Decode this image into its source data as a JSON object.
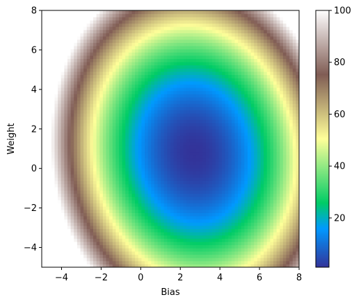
{
  "chart_data": {
    "type": "heatmap",
    "title": "",
    "xlabel": "Bias",
    "ylabel": "Weight",
    "xlim": [
      -5,
      8
    ],
    "ylim": [
      -5,
      8
    ],
    "x_ticks": [
      -4,
      -2,
      0,
      2,
      4,
      6,
      8
    ],
    "y_ticks": [
      -4,
      -2,
      0,
      2,
      4,
      6,
      8
    ],
    "x_tick_labels": [
      "−4",
      "−2",
      "0",
      "2",
      "4",
      "6",
      "8"
    ],
    "y_tick_labels": [
      "−4",
      "−2",
      "0",
      "2",
      "4",
      "6",
      "8"
    ],
    "grid": false,
    "grid_resolution": 80,
    "surface": {
      "form": "elliptic-paraboloid",
      "minimum_at": {
        "bias": 2.7,
        "weight": 0.8
      },
      "minimum_value": 1,
      "coefficients": {
        "bias_sq": 1.9,
        "weight_sq": 1.2,
        "cross": 0.2
      }
    },
    "colorbar": {
      "colormap": "terrain",
      "range": [
        1,
        100
      ],
      "ticks": [
        20,
        40,
        60,
        80,
        100
      ],
      "tick_labels": [
        "20",
        "40",
        "60",
        "80",
        "100"
      ],
      "placement": "right"
    }
  }
}
